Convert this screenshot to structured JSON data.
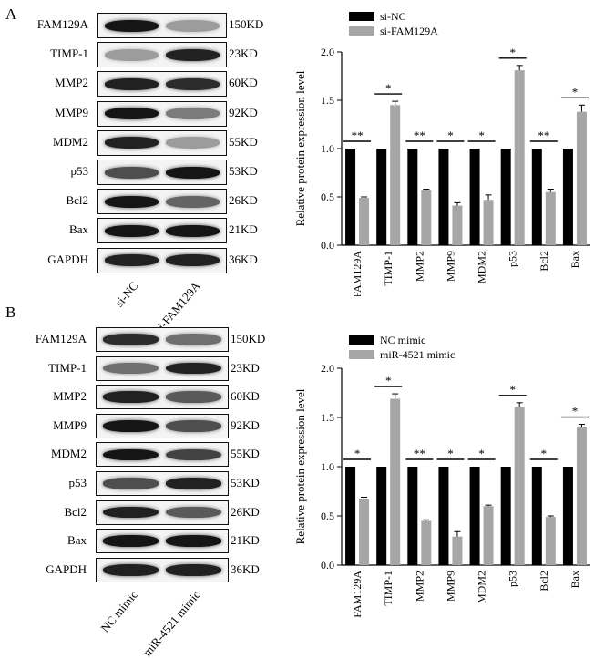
{
  "panels": [
    {
      "letter": "A",
      "blot": {
        "proteins": [
          "FAM129A",
          "TIMP-1",
          "MMP2",
          "MMP9",
          "MDM2",
          "p53",
          "Bcl2",
          "Bax",
          "GAPDH"
        ],
        "sizes": [
          "150KD",
          "23KD",
          "60KD",
          "92KD",
          "55KD",
          "53KD",
          "26KD",
          "21KD",
          "36KD"
        ],
        "lanes": [
          "si-NC",
          "si-FAM129A"
        ]
      },
      "chart_data": {
        "type": "bar",
        "categories": [
          "FAM129A",
          "TIMP-1",
          "MMP2",
          "MMP9",
          "MDM2",
          "p53",
          "Bcl2",
          "Bax"
        ],
        "series": [
          {
            "name": "si-NC",
            "color": "#000000",
            "values": [
              1,
              1,
              1,
              1,
              1,
              1,
              1,
              1
            ],
            "errors": [
              0,
              0,
              0,
              0,
              0,
              0,
              0,
              0
            ]
          },
          {
            "name": "si-FAM129A",
            "color": "#a6a6a6",
            "values": [
              0.49,
              1.45,
              0.57,
              0.41,
              0.47,
              1.81,
              0.55,
              1.38
            ],
            "errors": [
              0.01,
              0.04,
              0.01,
              0.03,
              0.05,
              0.05,
              0.03,
              0.07
            ]
          }
        ],
        "significance": [
          "**",
          "*",
          "**",
          "*",
          "*",
          "*",
          "**",
          "*"
        ],
        "ylabel": "Relative protein expression level",
        "ylim": [
          0,
          2.0
        ],
        "yticks": [
          "0.0",
          "0.5",
          "1.0",
          "1.5",
          "2.0"
        ],
        "legend_position": "top-left"
      }
    },
    {
      "letter": "B",
      "blot": {
        "proteins": [
          "FAM129A",
          "TIMP-1",
          "MMP2",
          "MMP9",
          "MDM2",
          "p53",
          "Bcl2",
          "Bax",
          "GAPDH"
        ],
        "sizes": [
          "150KD",
          "23KD",
          "60KD",
          "92KD",
          "55KD",
          "53KD",
          "26KD",
          "21KD",
          "36KD"
        ],
        "lanes": [
          "NC mimic",
          "miR-4521 mimic"
        ]
      },
      "chart_data": {
        "type": "bar",
        "categories": [
          "FAM129A",
          "TIMP-1",
          "MMP2",
          "MMP9",
          "MDM2",
          "p53",
          "Bcl2",
          "Bax"
        ],
        "series": [
          {
            "name": "NC mimic",
            "color": "#000000",
            "values": [
              1,
              1,
              1,
              1,
              1,
              1,
              1,
              1
            ],
            "errors": [
              0,
              0,
              0,
              0,
              0,
              0,
              0,
              0
            ]
          },
          {
            "name": "miR-4521 mimic",
            "color": "#a6a6a6",
            "values": [
              0.67,
              1.69,
              0.45,
              0.29,
              0.6,
              1.61,
              0.49,
              1.4
            ],
            "errors": [
              0.02,
              0.05,
              0.01,
              0.05,
              0.01,
              0.04,
              0.01,
              0.03
            ]
          }
        ],
        "significance": [
          "*",
          "*",
          "**",
          "*",
          "*",
          "*",
          "*",
          "*"
        ],
        "ylabel": "Relative protein expression level",
        "ylim": [
          0,
          2.0
        ],
        "yticks": [
          "0.0",
          "0.5",
          "1.0",
          "1.5",
          "2.0"
        ],
        "legend_position": "top-left"
      }
    }
  ]
}
